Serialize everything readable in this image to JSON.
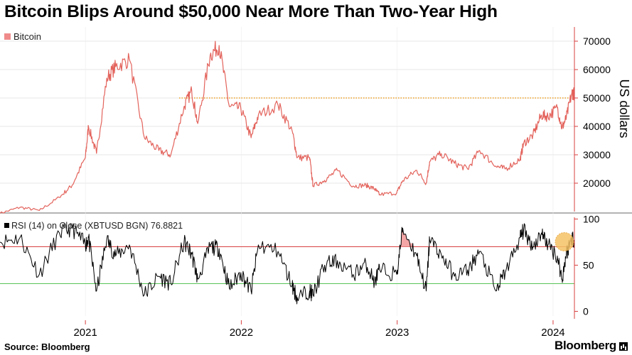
{
  "title": "Bitcoin Blips Around $50,000 Near More Than Two-Year High",
  "source": "Source: Bloomberg",
  "brand": "Bloomberg",
  "brand_icon": "bloomberg-terminal-icon",
  "colors": {
    "price_line": "#e3635c",
    "legend_swatch": "#f08b8b",
    "reference_dotted": "#f0a020",
    "rsi_line": "#000000",
    "overbought_line": "#d94040",
    "oversold_line": "#58c458",
    "overbought_fill": "#f4a6a6",
    "marker_fill": "#f6c266",
    "axis": "#d94040",
    "grid": "#d0d0d0"
  },
  "chart_data": [
    {
      "type": "line",
      "name": "price-panel",
      "legend": "Bitcoin",
      "ylabel": "US dollars",
      "ylim": [
        10000,
        75000
      ],
      "yticks": [
        20000,
        30000,
        40000,
        50000,
        60000,
        70000
      ],
      "reference_line": 50000,
      "x_range": [
        "2020-06-15",
        "2024-02-20"
      ],
      "series": [
        {
          "name": "Bitcoin",
          "dates": [
            "2020-06-15",
            "2020-08-01",
            "2020-09-15",
            "2020-11-01",
            "2020-12-01",
            "2021-01-01",
            "2021-01-08",
            "2021-01-27",
            "2021-02-20",
            "2021-03-13",
            "2021-04-14",
            "2021-05-19",
            "2021-06-22",
            "2021-07-20",
            "2021-08-20",
            "2021-09-07",
            "2021-09-21",
            "2021-10-20",
            "2021-11-10",
            "2021-12-04",
            "2021-12-31",
            "2022-01-24",
            "2022-02-10",
            "2022-03-28",
            "2022-04-30",
            "2022-05-12",
            "2022-06-10",
            "2022-06-18",
            "2022-07-15",
            "2022-08-14",
            "2022-09-20",
            "2022-10-20",
            "2022-11-09",
            "2022-11-21",
            "2022-12-31",
            "2023-01-14",
            "2023-02-16",
            "2023-03-10",
            "2023-03-18",
            "2023-04-14",
            "2023-05-15",
            "2023-06-15",
            "2023-07-13",
            "2023-08-20",
            "2023-09-11",
            "2023-10-16",
            "2023-10-24",
            "2023-11-15",
            "2023-12-05",
            "2023-12-20",
            "2024-01-11",
            "2024-01-22",
            "2024-02-01",
            "2024-02-14",
            "2024-02-20"
          ],
          "values": [
            9400,
            11500,
            10400,
            15000,
            19300,
            29000,
            40000,
            30500,
            57000,
            61000,
            63500,
            36000,
            31500,
            30000,
            47000,
            52500,
            41000,
            65000,
            68500,
            47000,
            46300,
            36000,
            44000,
            47500,
            38500,
            29000,
            29000,
            19000,
            21000,
            24500,
            19000,
            19300,
            18000,
            16000,
            16600,
            20900,
            24500,
            20000,
            27500,
            30400,
            27000,
            25000,
            31500,
            26000,
            25000,
            28500,
            34000,
            37000,
            44000,
            43500,
            46500,
            39500,
            43000,
            51800,
            51500
          ]
        }
      ]
    },
    {
      "type": "line",
      "name": "rsi-panel",
      "legend": "RSI (14)  on Close (XBTUSD BGN) 76.8821",
      "current_value": 76.8821,
      "ylim": [
        -5,
        105
      ],
      "yticks": [
        0,
        50,
        100
      ],
      "overbought": 70,
      "oversold": 30,
      "x_range": [
        "2020-06-15",
        "2024-02-20"
      ],
      "xticks": [
        "2021",
        "2022",
        "2023",
        "2024"
      ],
      "series": [
        {
          "name": "RSI (14)",
          "dates": [
            "2020-06-15",
            "2020-08-01",
            "2020-09-15",
            "2020-11-01",
            "2020-12-01",
            "2021-01-01",
            "2021-01-08",
            "2021-01-27",
            "2021-02-20",
            "2021-03-13",
            "2021-04-14",
            "2021-05-19",
            "2021-06-22",
            "2021-07-20",
            "2021-08-20",
            "2021-09-07",
            "2021-09-21",
            "2021-10-20",
            "2021-11-10",
            "2021-12-04",
            "2021-12-31",
            "2022-01-24",
            "2022-02-10",
            "2022-03-28",
            "2022-04-30",
            "2022-05-12",
            "2022-06-10",
            "2022-06-18",
            "2022-07-15",
            "2022-08-14",
            "2022-09-20",
            "2022-10-20",
            "2022-11-09",
            "2022-11-21",
            "2022-12-31",
            "2023-01-14",
            "2023-02-16",
            "2023-03-10",
            "2023-03-18",
            "2023-04-14",
            "2023-05-15",
            "2023-06-15",
            "2023-07-13",
            "2023-08-20",
            "2023-09-11",
            "2023-10-16",
            "2023-10-24",
            "2023-11-15",
            "2023-12-05",
            "2023-12-20",
            "2024-01-11",
            "2024-01-22",
            "2024-02-01",
            "2024-02-14",
            "2024-02-20"
          ],
          "values": [
            75,
            80,
            40,
            85,
            90,
            72,
            80,
            22,
            78,
            60,
            72,
            18,
            38,
            30,
            75,
            62,
            35,
            70,
            68,
            25,
            42,
            22,
            72,
            65,
            28,
            15,
            22,
            18,
            50,
            55,
            40,
            52,
            32,
            45,
            40,
            90,
            60,
            22,
            78,
            62,
            38,
            45,
            65,
            22,
            42,
            80,
            88,
            70,
            85,
            72,
            60,
            35,
            62,
            80,
            76.9
          ]
        }
      ]
    }
  ]
}
